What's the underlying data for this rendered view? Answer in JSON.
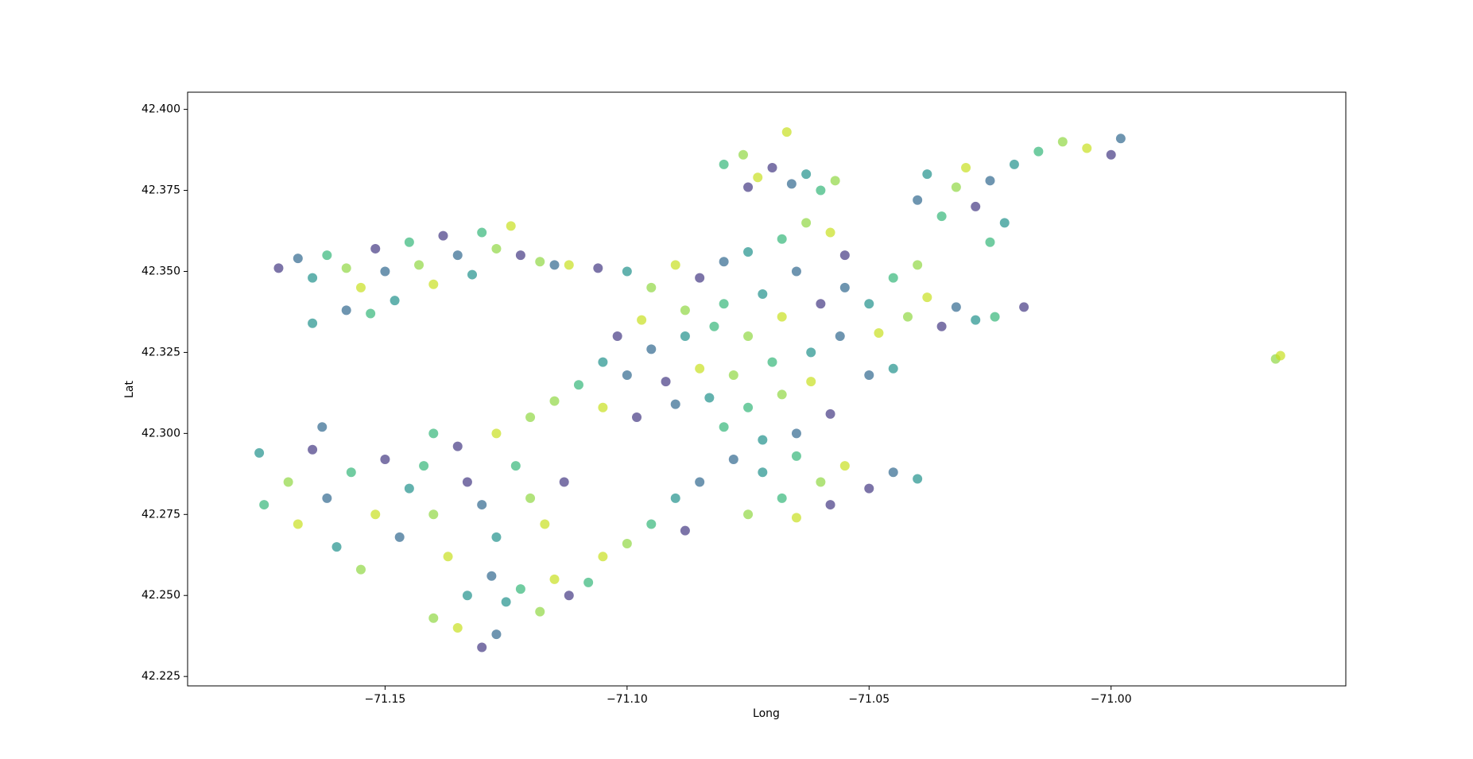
{
  "chart_data": {
    "type": "scatter",
    "xlabel": "Long",
    "ylabel": "Lat",
    "xlim": [
      -71.1908,
      -70.9515
    ],
    "ylim": [
      42.2221,
      42.4053
    ],
    "xticks": [
      {
        "value": -71.15,
        "label": "−71.15"
      },
      {
        "value": -71.1,
        "label": "−71.10"
      },
      {
        "value": -71.05,
        "label": "−71.05"
      },
      {
        "value": -71.0,
        "label": "−71.00"
      }
    ],
    "yticks": [
      {
        "value": 42.225,
        "label": "42.225"
      },
      {
        "value": 42.25,
        "label": "42.250"
      },
      {
        "value": 42.275,
        "label": "42.275"
      },
      {
        "value": 42.3,
        "label": "42.300"
      },
      {
        "value": 42.325,
        "label": "42.325"
      },
      {
        "value": 42.35,
        "label": "42.350"
      },
      {
        "value": 42.375,
        "label": "42.375"
      },
      {
        "value": 42.4,
        "label": "42.400"
      }
    ],
    "colors": [
      "#443983",
      "#31688e",
      "#21918c",
      "#35b779",
      "#90d743",
      "#c8e020"
    ],
    "x": [
      -71.172,
      -71.168,
      -71.165,
      -71.162,
      -71.158,
      -71.155,
      -71.152,
      -71.15,
      -71.148,
      -71.145,
      -71.143,
      -71.14,
      -71.138,
      -71.135,
      -71.132,
      -71.13,
      -71.127,
      -71.124,
      -71.122,
      -71.158,
      -71.165,
      -71.153,
      -71.118,
      -71.112,
      -71.106,
      -71.115,
      -71.1,
      -71.08,
      -71.076,
      -71.073,
      -71.07,
      -71.066,
      -71.063,
      -71.06,
      -71.057,
      -71.067,
      -71.075,
      -71.04,
      -71.038,
      -71.035,
      -71.032,
      -71.03,
      -71.028,
      -71.025,
      -71.02,
      -71.015,
      -71.01,
      -71.005,
      -71.0,
      -70.998,
      -71.022,
      -71.025,
      -71.095,
      -71.09,
      -71.085,
      -71.08,
      -71.075,
      -71.068,
      -71.063,
      -71.058,
      -71.055,
      -71.065,
      -71.072,
      -71.08,
      -71.088,
      -71.097,
      -71.102,
      -71.095,
      -71.088,
      -71.082,
      -71.075,
      -71.068,
      -71.06,
      -71.056,
      -71.062,
      -71.07,
      -71.078,
      -71.085,
      -71.092,
      -71.1,
      -71.105,
      -71.11,
      -71.115,
      -71.105,
      -71.098,
      -71.09,
      -71.083,
      -71.075,
      -71.068,
      -71.062,
      -71.058,
      -71.065,
      -71.072,
      -71.08,
      -71.12,
      -71.127,
      -71.135,
      -71.055,
      -71.05,
      -71.045,
      -71.042,
      -71.038,
      -71.035,
      -71.032,
      -71.028,
      -71.024,
      -71.04,
      -71.048,
      -71.018,
      -71.078,
      -71.072,
      -71.065,
      -71.06,
      -71.055,
      -71.05,
      -71.045,
      -71.04,
      -71.068,
      -71.075,
      -71.065,
      -71.058,
      -71.085,
      -71.09,
      -71.095,
      -71.1,
      -71.105,
      -71.088,
      -71.05,
      -71.045,
      -71.175,
      -71.17,
      -71.168,
      -71.165,
      -71.162,
      -71.16,
      -71.157,
      -71.155,
      -71.152,
      -71.15,
      -71.147,
      -71.145,
      -71.142,
      -71.14,
      -71.137,
      -71.133,
      -71.13,
      -71.127,
      -71.123,
      -71.12,
      -71.117,
      -71.113,
      -71.163,
      -71.176,
      -71.14,
      -71.14,
      -71.135,
      -71.13,
      -71.127,
      -71.125,
      -71.122,
      -71.118,
      -71.115,
      -71.112,
      -71.128,
      -71.133,
      -71.108,
      -70.966,
      -70.965
    ],
    "y": [
      42.351,
      42.354,
      42.348,
      42.355,
      42.351,
      42.345,
      42.357,
      42.35,
      42.341,
      42.359,
      42.352,
      42.346,
      42.361,
      42.355,
      42.349,
      42.362,
      42.357,
      42.364,
      42.355,
      42.338,
      42.334,
      42.337,
      42.353,
      42.352,
      42.351,
      42.352,
      42.35,
      42.383,
      42.386,
      42.379,
      42.382,
      42.377,
      42.38,
      42.375,
      42.378,
      42.393,
      42.376,
      42.372,
      42.38,
      42.367,
      42.376,
      42.382,
      42.37,
      42.378,
      42.383,
      42.387,
      42.39,
      42.388,
      42.386,
      42.391,
      42.365,
      42.359,
      42.345,
      42.352,
      42.348,
      42.353,
      42.356,
      42.36,
      42.365,
      42.362,
      42.355,
      42.35,
      42.343,
      42.34,
      42.338,
      42.335,
      42.33,
      42.326,
      42.33,
      42.333,
      42.33,
      42.336,
      42.34,
      42.33,
      42.325,
      42.322,
      42.318,
      42.32,
      42.316,
      42.318,
      42.322,
      42.315,
      42.31,
      42.308,
      42.305,
      42.309,
      42.311,
      42.308,
      42.312,
      42.316,
      42.306,
      42.3,
      42.298,
      42.302,
      42.305,
      42.3,
      42.296,
      42.345,
      42.34,
      42.348,
      42.336,
      42.342,
      42.333,
      42.339,
      42.335,
      42.336,
      42.352,
      42.331,
      42.339,
      42.292,
      42.288,
      42.293,
      42.285,
      42.29,
      42.283,
      42.288,
      42.286,
      42.28,
      42.275,
      42.274,
      42.278,
      42.285,
      42.28,
      42.272,
      42.266,
      42.262,
      42.27,
      42.318,
      42.32,
      42.278,
      42.285,
      42.272,
      42.295,
      42.28,
      42.265,
      42.288,
      42.258,
      42.275,
      42.292,
      42.268,
      42.283,
      42.29,
      42.275,
      42.262,
      42.285,
      42.278,
      42.268,
      42.29,
      42.28,
      42.272,
      42.285,
      42.302,
      42.294,
      42.3,
      42.243,
      42.24,
      42.234,
      42.238,
      42.248,
      42.252,
      42.245,
      42.255,
      42.25,
      42.256,
      42.25,
      42.254,
      42.323,
      42.324
    ]
  }
}
